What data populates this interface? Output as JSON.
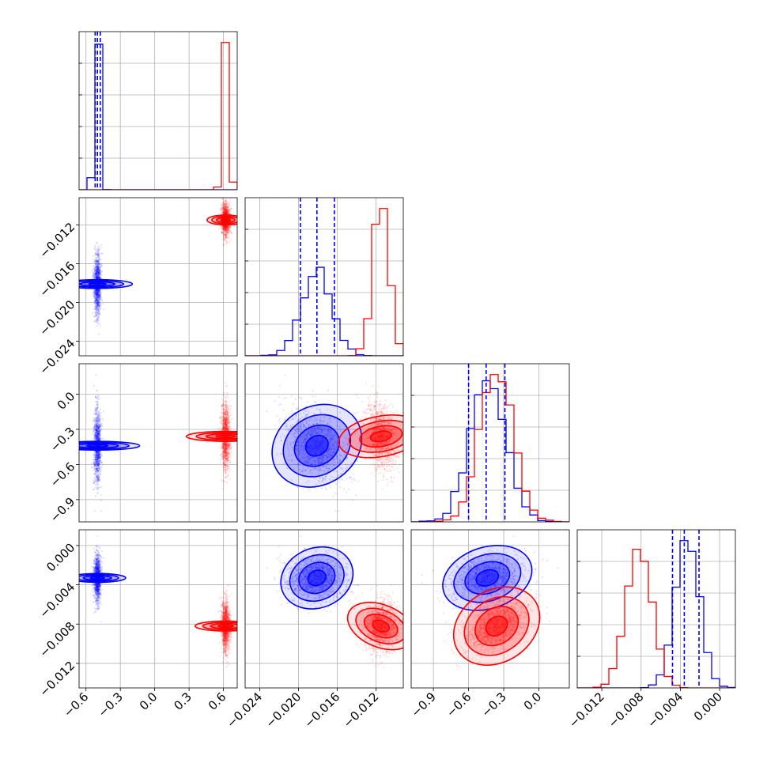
{
  "chart_data": {
    "type": "scatter",
    "title": "",
    "parameters": [
      {
        "ticks": [
          -0.6,
          -0.3,
          0.0,
          0.3,
          0.6
        ],
        "tick_labels": [
          "−0.6",
          "−0.3",
          "0.0",
          "0.3",
          "0.6"
        ],
        "range": [
          -0.66,
          0.72
        ]
      },
      {
        "ticks": [
          -0.024,
          -0.02,
          -0.016,
          -0.012
        ],
        "tick_labels": [
          "−0.024",
          "−0.020",
          "−0.016",
          "−0.012"
        ],
        "range": [
          -0.0255,
          -0.0092
        ]
      },
      {
        "ticks": [
          -0.9,
          -0.6,
          -0.3,
          0.0
        ],
        "tick_labels": [
          "−0.9",
          "−0.6",
          "−0.3",
          "0.0"
        ],
        "range": [
          -1.09,
          0.26
        ]
      },
      {
        "ticks": [
          -0.012,
          -0.008,
          -0.004,
          0.0
        ],
        "tick_labels": [
          "−0.012",
          "−0.008",
          "−0.004",
          "0.000"
        ],
        "range": [
          -0.0145,
          0.0016
        ]
      }
    ],
    "series": [
      {
        "color": "#0000ff",
        "mean": [
          -0.5,
          -0.0181,
          -0.44,
          -0.0033
        ],
        "sd": [
          0.016,
          0.0015,
          0.15,
          0.0012
        ],
        "corr_12": -0.4,
        "corr_13": 0.2,
        "corr_23": 0.3,
        "quantiles": [
          [
            -0.52,
            -0.5,
            -0.475
          ],
          [
            -0.0198,
            -0.0181,
            -0.0163
          ],
          [
            -0.6,
            -0.45,
            -0.29
          ],
          [
            -0.0048,
            -0.0036,
            -0.0021
          ]
        ]
      },
      {
        "color": "#ff0000",
        "mean": [
          0.62,
          -0.0115,
          -0.36,
          -0.0082
        ],
        "sd": [
          0.018,
          0.0008,
          0.14,
          0.0013
        ],
        "corr_12": -0.3,
        "corr_13": 0.5,
        "corr_23": 0.6,
        "quantiles": []
      }
    ],
    "grid": true,
    "legend": "none"
  }
}
